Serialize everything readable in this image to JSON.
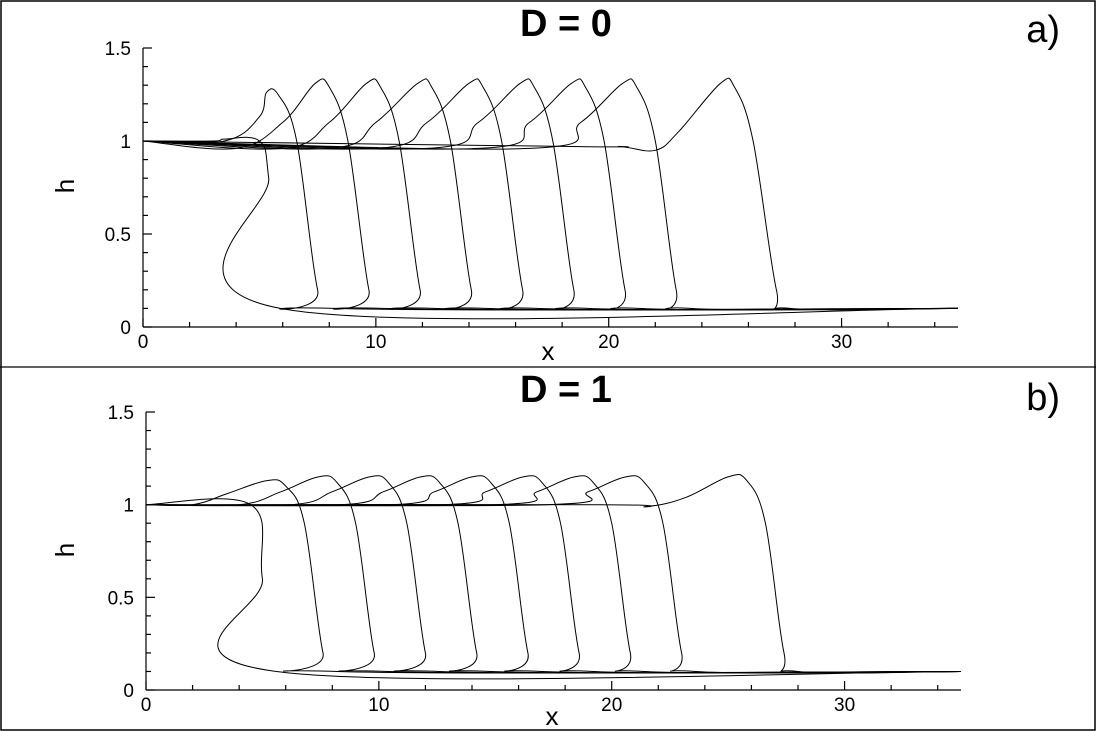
{
  "chart_data": [
    {
      "type": "line",
      "title": "D = 0",
      "panel_label": "a)",
      "xlabel": "x",
      "ylabel": "h",
      "xlim": [
        0,
        35
      ],
      "ylim": [
        0,
        1.5
      ],
      "xticks": [
        "0",
        "10",
        "20",
        "30"
      ],
      "yticks": [
        "0",
        "0.5",
        "1",
        "1.5"
      ],
      "grid": false,
      "series": [
        {
          "x": [
            0,
            3.0,
            3.5,
            5.0,
            5.4,
            5.9,
            35
          ],
          "y": [
            1.0,
            1.0,
            1.01,
            1.0,
            0.8,
            0.1,
            0.1
          ]
        },
        {
          "x": [
            0,
            3.5,
            5.0,
            5.3,
            5.8,
            6.6,
            7.5,
            8.2,
            35
          ],
          "y": [
            1.0,
            1.0,
            1.13,
            1.26,
            1.25,
            1.0,
            0.2,
            0.1,
            0.1
          ]
        },
        {
          "x": [
            0,
            4.0,
            6.0,
            7.4,
            8.0,
            8.8,
            9.7,
            10.3,
            35
          ],
          "y": [
            1.0,
            0.96,
            1.1,
            1.31,
            1.29,
            1.0,
            0.2,
            0.1,
            0.1
          ]
        },
        {
          "x": [
            0,
            6.0,
            8.0,
            9.6,
            10.2,
            11.0,
            11.9,
            12.5,
            35
          ],
          "y": [
            1.0,
            0.96,
            1.1,
            1.31,
            1.29,
            1.0,
            0.2,
            0.1,
            0.1
          ]
        },
        {
          "x": [
            0,
            8.0,
            10.0,
            11.8,
            12.4,
            13.2,
            14.1,
            14.7,
            35
          ],
          "y": [
            1.0,
            0.96,
            1.1,
            1.31,
            1.29,
            1.0,
            0.2,
            0.1,
            0.1
          ]
        },
        {
          "x": [
            0,
            10.0,
            12.2,
            14.0,
            14.6,
            15.4,
            16.3,
            16.9,
            35
          ],
          "y": [
            1.0,
            0.96,
            1.1,
            1.31,
            1.29,
            1.0,
            0.2,
            0.1,
            0.1
          ]
        },
        {
          "x": [
            0,
            12.2,
            14.4,
            16.2,
            16.8,
            17.6,
            18.5,
            19.1,
            35
          ],
          "y": [
            1.0,
            0.96,
            1.1,
            1.31,
            1.29,
            1.0,
            0.2,
            0.1,
            0.1
          ]
        },
        {
          "x": [
            0,
            14.4,
            16.6,
            18.4,
            19.0,
            19.8,
            20.7,
            21.3,
            35
          ],
          "y": [
            1.0,
            0.96,
            1.1,
            1.31,
            1.29,
            1.0,
            0.2,
            0.1,
            0.1
          ]
        },
        {
          "x": [
            0,
            16.6,
            18.8,
            20.6,
            21.2,
            22.0,
            22.9,
            23.5,
            35
          ],
          "y": [
            1.0,
            0.96,
            1.1,
            1.31,
            1.29,
            1.0,
            0.2,
            0.1,
            0.1
          ]
        },
        {
          "x": [
            0,
            18.8,
            20.5,
            22.0,
            23.0,
            24.8,
            25.4,
            26.2,
            27.2,
            27.8,
            35
          ],
          "y": [
            1.0,
            0.97,
            0.97,
            0.95,
            1.05,
            1.31,
            1.29,
            1.0,
            0.2,
            0.1,
            0.1
          ]
        }
      ]
    },
    {
      "type": "line",
      "title": "D = 1",
      "panel_label": "b)",
      "xlabel": "x",
      "ylabel": "h",
      "xlim": [
        0,
        35
      ],
      "ylim": [
        0,
        1.5
      ],
      "xticks": [
        "0",
        "10",
        "20",
        "30"
      ],
      "yticks": [
        "0",
        "0.5",
        "1",
        "1.5"
      ],
      "grid": false,
      "series": [
        {
          "x": [
            0,
            4.5,
            5.0,
            5.6,
            35
          ],
          "y": [
            1.0,
            1.0,
            0.6,
            0.1,
            0.1
          ]
        },
        {
          "x": [
            0,
            2.0,
            3.5,
            5.2,
            6.0,
            6.8,
            7.6,
            8.2,
            35
          ],
          "y": [
            1.0,
            1.0,
            1.06,
            1.13,
            1.1,
            0.9,
            0.2,
            0.1,
            0.1
          ]
        },
        {
          "x": [
            0,
            4.0,
            5.8,
            7.4,
            8.2,
            9.0,
            9.8,
            10.4,
            35
          ],
          "y": [
            1.0,
            1.0,
            1.07,
            1.15,
            1.12,
            0.9,
            0.2,
            0.1,
            0.1
          ]
        },
        {
          "x": [
            0,
            6.2,
            8.0,
            9.6,
            10.4,
            11.2,
            12.0,
            12.6,
            35
          ],
          "y": [
            1.0,
            1.0,
            1.07,
            1.15,
            1.12,
            0.9,
            0.2,
            0.1,
            0.1
          ]
        },
        {
          "x": [
            0,
            8.4,
            10.2,
            11.8,
            12.6,
            13.4,
            14.2,
            14.8,
            35
          ],
          "y": [
            1.0,
            1.0,
            1.07,
            1.15,
            1.12,
            0.9,
            0.2,
            0.1,
            0.1
          ]
        },
        {
          "x": [
            0,
            10.6,
            12.4,
            14.0,
            14.8,
            15.6,
            16.4,
            17.0,
            35
          ],
          "y": [
            1.0,
            1.0,
            1.07,
            1.15,
            1.12,
            0.9,
            0.2,
            0.1,
            0.1
          ]
        },
        {
          "x": [
            0,
            12.8,
            14.6,
            16.2,
            17.0,
            17.8,
            18.6,
            19.2,
            35
          ],
          "y": [
            1.0,
            1.0,
            1.07,
            1.15,
            1.12,
            0.9,
            0.2,
            0.1,
            0.1
          ]
        },
        {
          "x": [
            0,
            15.0,
            16.8,
            18.4,
            19.2,
            20.0,
            20.8,
            21.4,
            35
          ],
          "y": [
            1.0,
            1.0,
            1.07,
            1.15,
            1.12,
            0.9,
            0.2,
            0.1,
            0.1
          ]
        },
        {
          "x": [
            0,
            17.2,
            19.0,
            20.6,
            21.4,
            22.2,
            23.0,
            23.6,
            35
          ],
          "y": [
            1.0,
            1.0,
            1.07,
            1.15,
            1.12,
            0.9,
            0.2,
            0.1,
            0.1
          ]
        },
        {
          "x": [
            0,
            19.5,
            21.5,
            23.2,
            25.0,
            25.8,
            26.6,
            27.4,
            28.0,
            35
          ],
          "y": [
            1.0,
            1.0,
            0.99,
            1.04,
            1.15,
            1.13,
            0.9,
            0.2,
            0.1,
            0.1
          ]
        }
      ]
    }
  ]
}
